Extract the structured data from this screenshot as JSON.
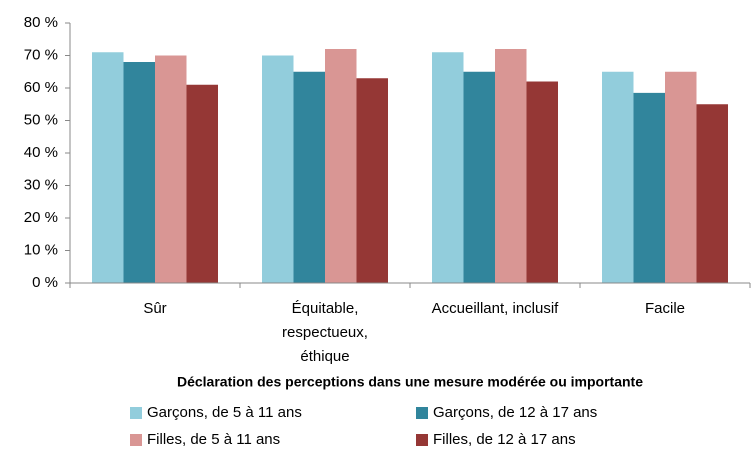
{
  "chart_data": {
    "type": "bar",
    "x_label": "Déclaration des perceptions dans une mesure modérée ou importante",
    "categories": [
      "Sûr",
      "Équitable, respectueux, éthique",
      "Accueillant, inclusif",
      "Facile"
    ],
    "series": [
      {
        "name": "Garçons, de 5 à 11 ans",
        "color": "#92cddc",
        "values": [
          71,
          70,
          71,
          65
        ]
      },
      {
        "name": "Garçons, de 12 à 17 ans",
        "color": "#31859c",
        "values": [
          68,
          65,
          65,
          58.5
        ]
      },
      {
        "name": "Filles, de 5 à 11 ans",
        "color": "#d99694",
        "values": [
          70,
          72,
          72,
          65
        ]
      },
      {
        "name": "Filles, de 12 à 17 ans",
        "color": "#953735",
        "values": [
          61,
          63,
          62,
          55
        ]
      }
    ],
    "ylim": [
      0,
      80
    ],
    "yticks": [
      {
        "value": 0,
        "label": "0 %"
      },
      {
        "value": 10,
        "label": "10 %"
      },
      {
        "value": 20,
        "label": "20 %"
      },
      {
        "value": 30,
        "label": "30 %"
      },
      {
        "value": 40,
        "label": "40 %"
      },
      {
        "value": 50,
        "label": "50 %"
      },
      {
        "value": 60,
        "label": "60 %"
      },
      {
        "value": 70,
        "label": "70 %"
      },
      {
        "value": 80,
        "label": "80 %"
      }
    ],
    "grid": false
  }
}
